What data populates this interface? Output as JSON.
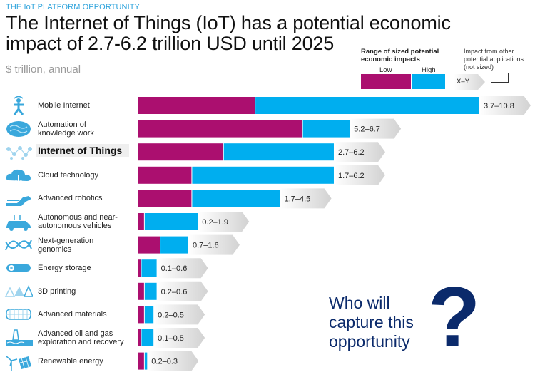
{
  "header": {
    "kicker": "THE IoT PLATFORM OPPORTUNITY",
    "title": "The Internet of Things (IoT) has a potential economic impact of 2.7-6.2 trillion USD until 2025",
    "subtitle": "$ trillion, annual"
  },
  "legend": {
    "range_title": "Range of sized potential economic impacts",
    "low_label": "Low",
    "high_label": "High",
    "other_label": "Impact from other potential applications (not sized)",
    "xy_label": "X–Y",
    "colors": {
      "low": "#ab0f6f",
      "high": "#00aeef"
    }
  },
  "chart_data": {
    "type": "bar",
    "orientation": "horizontal",
    "stacked_range": true,
    "title": "The Internet of Things (IoT) has a potential economic impact of 2.7-6.2 trillion USD until 2025",
    "ylabel": "$ trillion, annual",
    "xlim": [
      0,
      10.8
    ],
    "grid": false,
    "legend_position": "top-right",
    "categories": [
      "Mobile Internet",
      "Automation of knowledge work",
      "Internet of Things",
      "Cloud technology",
      "Advanced robotics",
      "Autonomous and near-autonomous vehicles",
      "Next-generation genomics",
      "Energy storage",
      "3D printing",
      "Advanced materials",
      "Advanced oil and gas exploration and recovery",
      "Renewable energy"
    ],
    "series": [
      {
        "name": "Low",
        "color": "#ab0f6f",
        "values": [
          3.7,
          5.2,
          2.7,
          1.7,
          1.7,
          0.2,
          0.7,
          0.1,
          0.2,
          0.2,
          0.1,
          0.2
        ]
      },
      {
        "name": "High",
        "color": "#00aeef",
        "values": [
          10.8,
          6.7,
          6.2,
          6.2,
          4.5,
          1.9,
          1.6,
          0.6,
          0.6,
          0.5,
          0.5,
          0.3
        ]
      }
    ],
    "data_labels": [
      "3.7–10.8",
      "5.2–6.7",
      "2.7–6.2",
      "1.7–6.2",
      "1.7–4.5",
      "0.2–1.9",
      "0.7–1.6",
      "0.1–0.6",
      "0.2–0.6",
      "0.2–0.5",
      "0.1–0.5",
      "0.2–0.3"
    ],
    "highlighted": "Internet of Things"
  },
  "rows": [
    {
      "label_lines": [
        "Mobile Internet"
      ],
      "icon": "person-wifi-icon"
    },
    {
      "label_lines": [
        "Automation of",
        "knowledge work"
      ],
      "icon": "brain-icon"
    },
    {
      "label_lines": [
        "Internet of Things"
      ],
      "icon": "network-icon",
      "highlight": true
    },
    {
      "label_lines": [
        "Cloud technology"
      ],
      "icon": "cloud-icon"
    },
    {
      "label_lines": [
        "Advanced robotics"
      ],
      "icon": "robot-arm-icon"
    },
    {
      "label_lines": [
        "Autonomous and near-",
        "autonomous vehicles"
      ],
      "icon": "car-icon"
    },
    {
      "label_lines": [
        "Next-generation",
        "genomics"
      ],
      "icon": "dna-icon"
    },
    {
      "label_lines": [
        "Energy storage"
      ],
      "icon": "battery-icon"
    },
    {
      "label_lines": [
        "3D printing"
      ],
      "icon": "3d-shapes-icon"
    },
    {
      "label_lines": [
        "Advanced materials"
      ],
      "icon": "mesh-icon"
    },
    {
      "label_lines": [
        "Advanced oil and gas",
        "exploration and recovery"
      ],
      "icon": "oil-rig-icon"
    },
    {
      "label_lines": [
        "Renewable energy"
      ],
      "icon": "wind-solar-icon"
    }
  ],
  "callout": {
    "lines": [
      "Who will",
      "capture this",
      "opportunity"
    ],
    "mark": "?"
  }
}
